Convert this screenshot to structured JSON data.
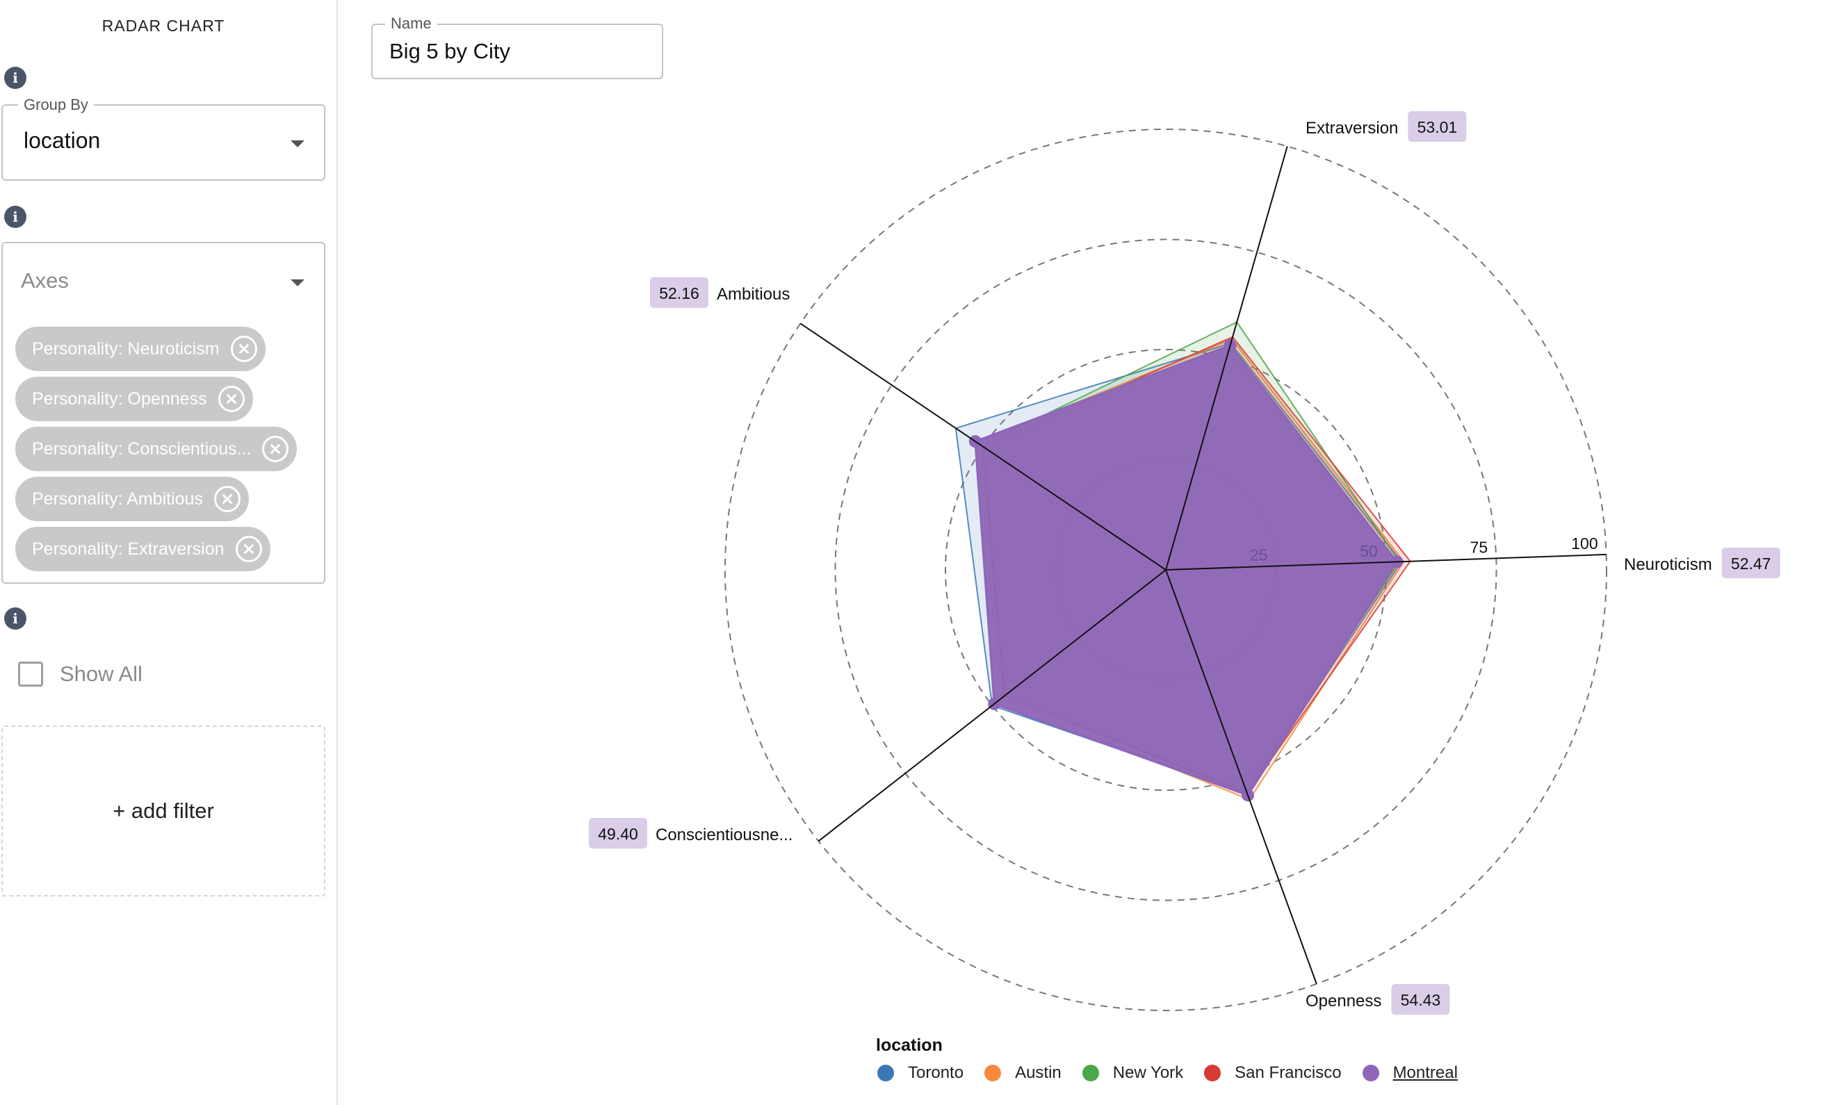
{
  "sidebar": {
    "title": "RADAR CHART",
    "group_by": {
      "label": "Group By",
      "value": "location"
    },
    "axes": {
      "placeholder": "Axes",
      "chips": [
        "Personality: Neuroticism",
        "Personality: Openness",
        "Personality: Conscientious...",
        "Personality: Ambitious",
        "Personality: Extraversion"
      ]
    },
    "show_all_label": "Show All",
    "add_filter_label": "+ add filter"
  },
  "name_field": {
    "label": "Name",
    "value": "Big 5 by City"
  },
  "legend": {
    "title": "location",
    "items": [
      {
        "label": "Toronto",
        "color": "#3b78b8"
      },
      {
        "label": "Austin",
        "color": "#f58a3a"
      },
      {
        "label": "New York",
        "color": "#4ca64a"
      },
      {
        "label": "San Francisco",
        "color": "#d63a32"
      },
      {
        "label": "Montreal",
        "color": "#8e66b8"
      }
    ]
  },
  "chart_data": {
    "type": "radar",
    "radial_range": [
      0,
      100
    ],
    "ticks": [
      25,
      50,
      75,
      100
    ],
    "axes": [
      {
        "label": "Neuroticism",
        "badge": "52.47"
      },
      {
        "label": "Openness",
        "badge": "54.43"
      },
      {
        "label": "Conscientiousne...",
        "badge": "49.40"
      },
      {
        "label": "Ambitious",
        "badge": "52.16"
      },
      {
        "label": "Extraversion",
        "badge": "53.01"
      }
    ],
    "series": [
      {
        "name": "Toronto",
        "color": "#3b78b8",
        "values": [
          53.5,
          54.0,
          50.0,
          57.5,
          53.5
        ]
      },
      {
        "name": "Austin",
        "color": "#f58a3a",
        "values": [
          54.0,
          55.5,
          47.5,
          51.5,
          54.5
        ]
      },
      {
        "name": "New York",
        "color": "#4ca64a",
        "values": [
          53.0,
          53.5,
          46.5,
          50.5,
          58.5
        ]
      },
      {
        "name": "San Francisco",
        "color": "#d63a32",
        "values": [
          55.5,
          54.0,
          46.5,
          50.0,
          55.0
        ]
      },
      {
        "name": "Montreal",
        "color": "#8e66b8",
        "values": [
          52.47,
          54.43,
          49.4,
          52.16,
          53.01
        ]
      }
    ],
    "highlighted_series": "Montreal"
  }
}
